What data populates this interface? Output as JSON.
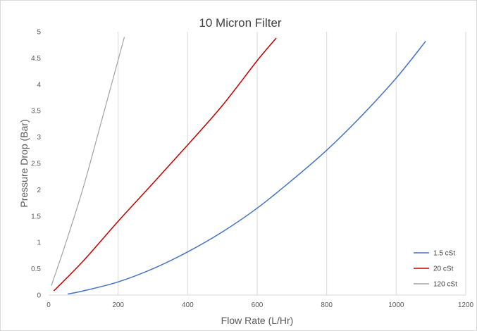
{
  "chart_data": {
    "type": "line",
    "title": "10 Micron Filter",
    "xlabel": "Flow Rate (L/Hr)",
    "ylabel": "Pressure Drop (Bar)",
    "xlim": [
      0,
      1200
    ],
    "ylim": [
      0,
      5
    ],
    "xticks": [
      "0",
      "200",
      "400",
      "600",
      "800",
      "1000",
      "1200"
    ],
    "yticks": [
      "0",
      "0.5",
      "1",
      "1.5",
      "2",
      "2.5",
      "3",
      "3.5",
      "4",
      "4.5",
      "5"
    ],
    "grid": "vertical",
    "legend_position": "bottom-right",
    "series": [
      {
        "name": "1.5 cSt",
        "color": "#4472c4",
        "x": [
          55,
          100,
          200,
          300,
          400,
          500,
          600,
          700,
          800,
          900,
          1000,
          1085
        ],
        "y": [
          0.02,
          0.08,
          0.25,
          0.5,
          0.82,
          1.2,
          1.65,
          2.18,
          2.75,
          3.4,
          4.12,
          4.82
        ]
      },
      {
        "name": "20 cSt",
        "color": "#c00000",
        "x": [
          15,
          100,
          200,
          300,
          400,
          500,
          600,
          655
        ],
        "y": [
          0.08,
          0.65,
          1.4,
          2.12,
          2.85,
          3.6,
          4.45,
          4.88
        ]
      },
      {
        "name": "120 cSt",
        "color": "#a5a5a5",
        "x": [
          8,
          50,
          100,
          150,
          218
        ],
        "y": [
          0.18,
          1.0,
          2.05,
          3.25,
          4.9
        ]
      }
    ]
  }
}
